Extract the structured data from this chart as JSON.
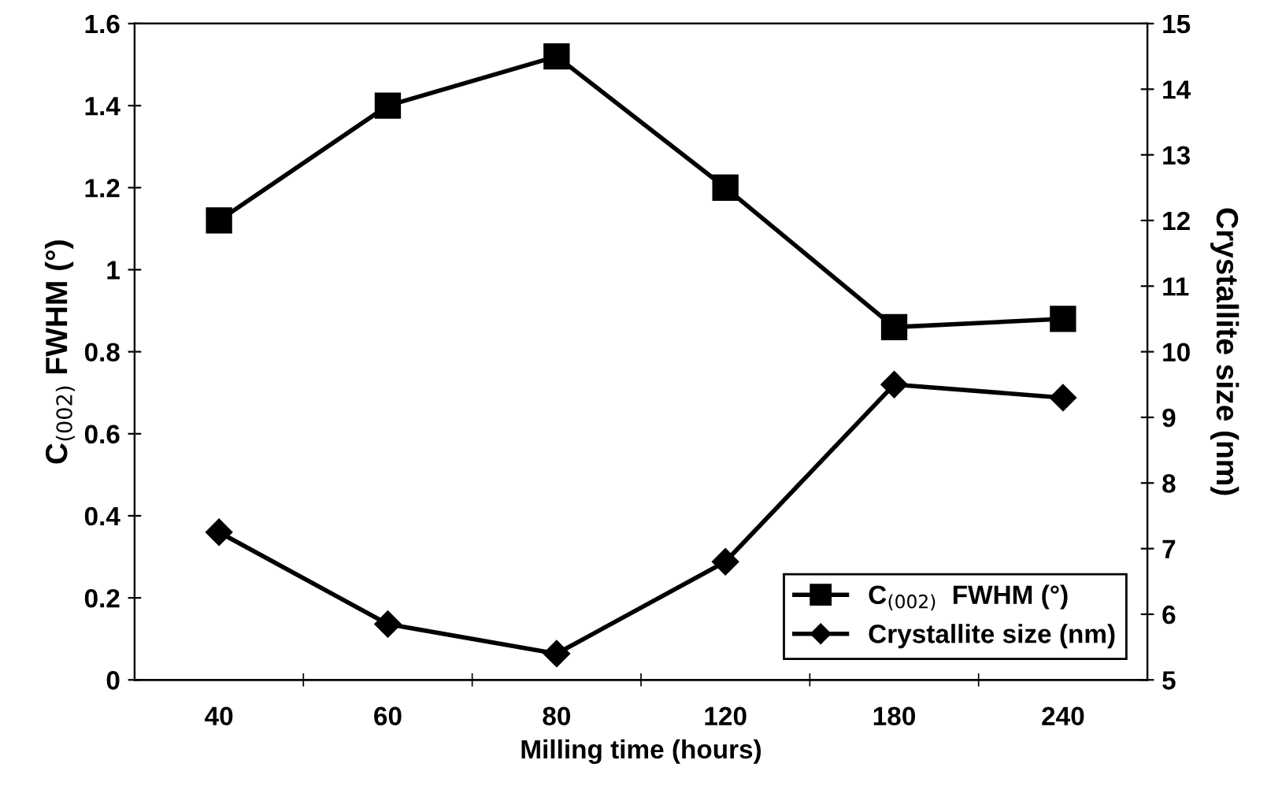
{
  "chart_data": {
    "type": "line",
    "xlabel": "Milling time (hours)",
    "ylabel": "C$_{(002)}$ FWHM (°)",
    "y2label": "Crystallite size (nm)",
    "categories": [
      "40",
      "60",
      "80",
      "120",
      "180",
      "240"
    ],
    "series": [
      {
        "name": "C$_{(002)}$  FWHM (°)",
        "color": "#000000",
        "marker": "square",
        "values": [
          1.12,
          1.4,
          1.52,
          1.2,
          0.86,
          0.88
        ]
      },
      {
        "name": "Crystallite size (nm)",
        "color": "#000000",
        "marker": "diamond",
        "axis": "y2",
        "values": [
          7.25,
          5.85,
          5.4,
          6.8,
          9.5,
          9.3
        ]
      }
    ],
    "ylim": [
      0,
      1.6
    ],
    "yticks": [
      0,
      0.2,
      0.4,
      0.6,
      0.8,
      1,
      1.2,
      1.4,
      1.6
    ],
    "y2lim": [
      5,
      15
    ],
    "y2ticks": [
      5,
      6,
      7,
      8,
      9,
      10,
      11,
      12,
      13,
      14,
      15
    ],
    "legend": "bottom right",
    "grid": false,
    "line_style": "solid"
  }
}
